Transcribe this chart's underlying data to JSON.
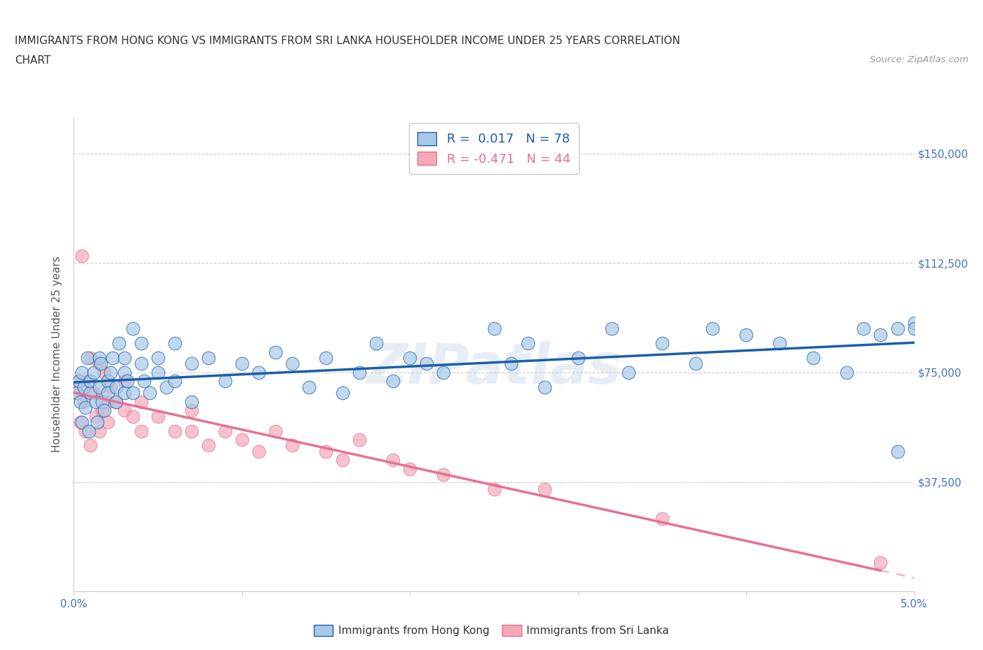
{
  "title_line1": "IMMIGRANTS FROM HONG KONG VS IMMIGRANTS FROM SRI LANKA HOUSEHOLDER INCOME UNDER 25 YEARS CORRELATION",
  "title_line2": "CHART",
  "source_text": "Source: ZipAtlas.com",
  "ylabel": "Householder Income Under 25 years",
  "xlim": [
    0.0,
    0.05
  ],
  "ylim": [
    0,
    162500
  ],
  "yticks": [
    0,
    37500,
    75000,
    112500,
    150000
  ],
  "ytick_labels": [
    "",
    "$37,500",
    "$75,000",
    "$112,500",
    "$150,000"
  ],
  "xticks": [
    0.0,
    0.01,
    0.02,
    0.03,
    0.04,
    0.05
  ],
  "xtick_labels": [
    "0.0%",
    "",
    "",
    "",
    "",
    "5.0%"
  ],
  "hk_color": "#a8c8e8",
  "sl_color": "#f4a8b8",
  "hk_line_color": "#1a5fa8",
  "sl_line_color": "#e87090",
  "hk_R": 0.017,
  "hk_N": 78,
  "sl_R": -0.471,
  "sl_N": 44,
  "watermark": "ZIPatlas",
  "background_color": "#ffffff",
  "hk_scatter_x": [
    0.0002,
    0.0003,
    0.0004,
    0.0005,
    0.0005,
    0.0006,
    0.0007,
    0.0008,
    0.0009,
    0.001,
    0.001,
    0.0012,
    0.0013,
    0.0014,
    0.0015,
    0.0015,
    0.0016,
    0.0017,
    0.0018,
    0.002,
    0.002,
    0.0022,
    0.0023,
    0.0025,
    0.0025,
    0.0027,
    0.003,
    0.003,
    0.003,
    0.0032,
    0.0035,
    0.0035,
    0.004,
    0.004,
    0.0042,
    0.0045,
    0.005,
    0.005,
    0.0055,
    0.006,
    0.006,
    0.007,
    0.007,
    0.008,
    0.009,
    0.01,
    0.011,
    0.012,
    0.013,
    0.014,
    0.015,
    0.016,
    0.017,
    0.018,
    0.019,
    0.02,
    0.021,
    0.022,
    0.025,
    0.026,
    0.027,
    0.028,
    0.03,
    0.032,
    0.033,
    0.035,
    0.037,
    0.038,
    0.04,
    0.042,
    0.044,
    0.046,
    0.047,
    0.048,
    0.049,
    0.049,
    0.05,
    0.05
  ],
  "hk_scatter_y": [
    68000,
    72000,
    65000,
    58000,
    75000,
    70000,
    63000,
    80000,
    55000,
    68000,
    72000,
    75000,
    65000,
    58000,
    80000,
    70000,
    78000,
    65000,
    62000,
    72000,
    68000,
    75000,
    80000,
    65000,
    70000,
    85000,
    68000,
    75000,
    80000,
    72000,
    90000,
    68000,
    78000,
    85000,
    72000,
    68000,
    75000,
    80000,
    70000,
    85000,
    72000,
    78000,
    65000,
    80000,
    72000,
    78000,
    75000,
    82000,
    78000,
    70000,
    80000,
    68000,
    75000,
    85000,
    72000,
    80000,
    78000,
    75000,
    90000,
    78000,
    85000,
    70000,
    80000,
    90000,
    75000,
    85000,
    78000,
    90000,
    88000,
    85000,
    80000,
    75000,
    90000,
    88000,
    48000,
    90000,
    92000,
    90000
  ],
  "sl_scatter_x": [
    0.0002,
    0.0003,
    0.0004,
    0.0005,
    0.0006,
    0.0007,
    0.0008,
    0.001,
    0.001,
    0.0012,
    0.0013,
    0.0015,
    0.0015,
    0.0017,
    0.0018,
    0.002,
    0.002,
    0.0022,
    0.0025,
    0.003,
    0.003,
    0.0035,
    0.004,
    0.004,
    0.005,
    0.006,
    0.007,
    0.007,
    0.008,
    0.009,
    0.01,
    0.011,
    0.012,
    0.013,
    0.015,
    0.016,
    0.017,
    0.019,
    0.02,
    0.022,
    0.025,
    0.028,
    0.035,
    0.048
  ],
  "sl_scatter_y": [
    68000,
    72000,
    58000,
    115000,
    65000,
    55000,
    72000,
    80000,
    50000,
    68000,
    60000,
    78000,
    55000,
    62000,
    75000,
    58000,
    65000,
    70000,
    65000,
    62000,
    72000,
    60000,
    55000,
    65000,
    60000,
    55000,
    55000,
    62000,
    50000,
    55000,
    52000,
    48000,
    55000,
    50000,
    48000,
    45000,
    52000,
    45000,
    42000,
    40000,
    35000,
    35000,
    25000,
    10000
  ]
}
